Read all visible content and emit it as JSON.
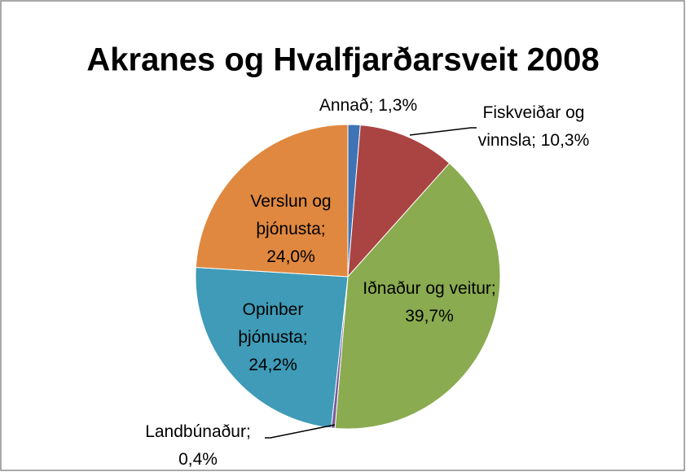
{
  "chart_data": {
    "type": "pie",
    "title": "Akranes og Hvalfjarðarsveit 2008",
    "categories": [
      "Annað",
      "Fiskveiðar og vinnsla",
      "Iðnaður og veitur",
      "Landbúnaður",
      "Opinber þjónusta",
      "Verslun og þjónusta"
    ],
    "values": [
      1.3,
      10.3,
      39.7,
      0.4,
      24.2,
      24.0
    ],
    "value_labels": [
      "Annað; 1,3%",
      "Fiskveiðar og vinnsla; 10,3%",
      "Iðnaður og veitur; 39,7%",
      "Landbúnaður; 0,4%",
      "Opinber þjónusta; 24,2%",
      "Verslun og þjónusta; 24,0%"
    ],
    "colors": [
      "#3f73b5",
      "#a94442",
      "#8aab4f",
      "#7b5a9e",
      "#3f9bb7",
      "#e0883f"
    ]
  }
}
